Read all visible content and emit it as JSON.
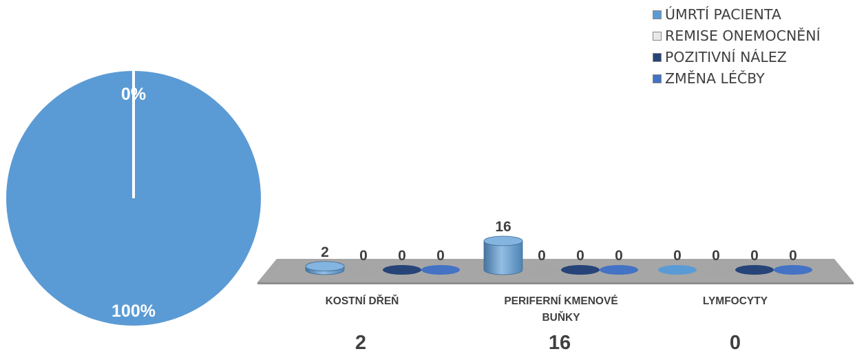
{
  "chart_data": [
    {
      "type": "pie",
      "slices": [
        {
          "label": "",
          "value": 100,
          "display": "100%",
          "color": "#5b9bd5"
        },
        {
          "label": "",
          "value": 0,
          "display": "0%",
          "color": "#ffffff"
        }
      ]
    },
    {
      "type": "bar",
      "style": "3d-cylinder",
      "categories": [
        "KOSTNÍ DŘEŇ",
        "PERIFERNÍ KMENOVÉ BUŇKY",
        "LYMFOCYTY"
      ],
      "series": [
        {
          "name": "ÚMRTÍ PACIENTA",
          "values": [
            2,
            16,
            0
          ],
          "color": "#5b9bd5"
        },
        {
          "name": "REMISE ONEMOCNĚNÍ",
          "values": [
            0,
            0,
            0
          ],
          "color": "#a5a5a5"
        },
        {
          "name": "POZITIVNÍ NÁLEZ",
          "values": [
            0,
            0,
            0
          ],
          "color": "#264478"
        },
        {
          "name": "ZMĚNA LÉČBY",
          "values": [
            0,
            0,
            0
          ],
          "color": "#4472c4"
        }
      ],
      "category_totals": [
        2,
        16,
        0
      ],
      "legend_position": "top-right",
      "grid": false
    }
  ]
}
